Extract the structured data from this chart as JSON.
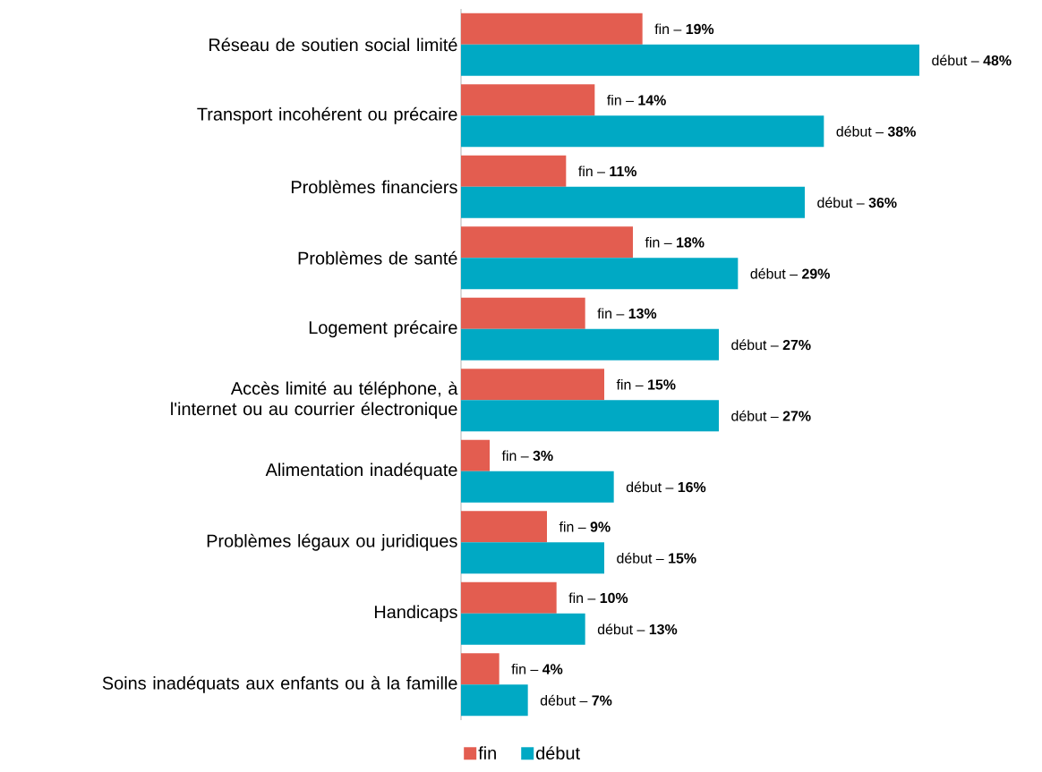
{
  "chart_data": {
    "type": "bar",
    "orientation": "horizontal",
    "legend": "bottom",
    "categories": [
      "Réseau de soutien social limité",
      "Transport incohérent ou précaire",
      "Problèmes financiers",
      "Problèmes de santé",
      "Logement précaire",
      "Accès limité au téléphone, à l'internet ou au courrier électronique",
      "Alimentation inadéquate",
      "Problèmes légaux ou juridiques",
      "Handicaps",
      "Soins inadéquats aux enfants ou à la famille"
    ],
    "series": [
      {
        "name": "fin",
        "color": "#e35d50",
        "values": [
          19,
          14,
          11,
          18,
          13,
          15,
          3,
          9,
          10,
          4
        ],
        "value_labels": [
          "fin – **19%**",
          "fin – **14%**",
          "fin – **11%**",
          "fin – **18%**",
          "fin – **13%**",
          "fin – **15%**",
          "fin – **3%**",
          "fin – **9%**",
          "fin – **10%**",
          "fin – **4%**"
        ]
      },
      {
        "name": "début",
        "color": "#00a9c4",
        "values": [
          48,
          38,
          36,
          29,
          27,
          27,
          16,
          15,
          13,
          7
        ],
        "value_labels": [
          "début – **48%**",
          "début – **38%**",
          "début – **36%**",
          "début – **29%**",
          "début – **27%**",
          "début – **27%**",
          "début – **16%**",
          "début – **15%**",
          "début – **13%**",
          "début – **7%**"
        ]
      }
    ]
  }
}
